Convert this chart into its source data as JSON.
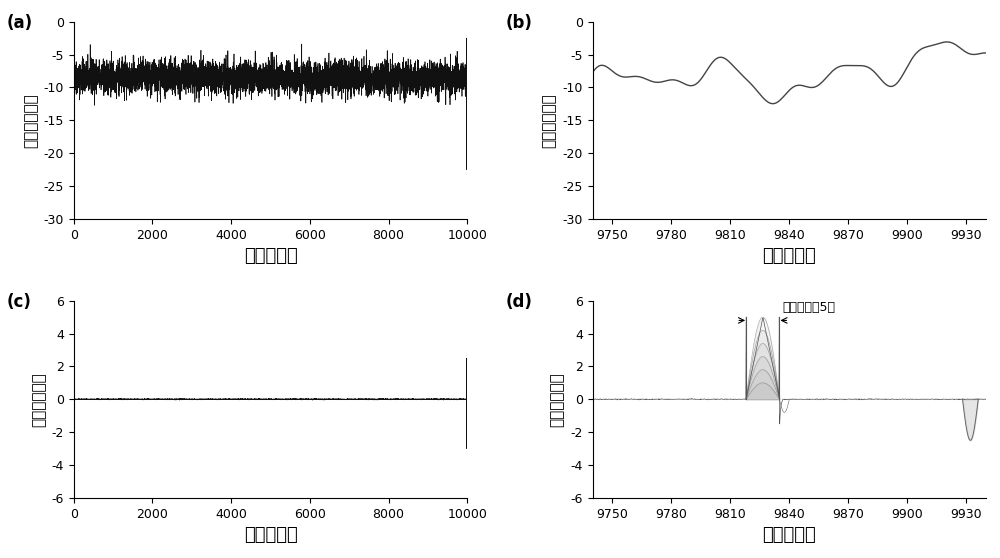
{
  "fig_width": 10.0,
  "fig_height": 5.58,
  "background_color": "#ffffff",
  "panels": {
    "a": {
      "label": "(a)",
      "xlabel": "距离（米）",
      "ylabel": "强度（分贝）",
      "xlim": [
        0,
        10000
      ],
      "ylim": [
        -30,
        0
      ],
      "xticks": [
        0,
        2000,
        4000,
        6000,
        8000,
        10000
      ],
      "yticks": [
        0,
        -5,
        -10,
        -15,
        -20,
        -25,
        -30
      ],
      "color": "#111111",
      "linewidth": 0.5
    },
    "b": {
      "label": "(b)",
      "xlabel": "距离（米）",
      "ylabel": "强度（分贝）",
      "xlim": [
        9740,
        9940
      ],
      "ylim": [
        -30,
        0
      ],
      "xticks": [
        9750,
        9780,
        9810,
        9840,
        9870,
        9900,
        9930
      ],
      "yticks": [
        0,
        -5,
        -10,
        -15,
        -20,
        -25,
        -30
      ],
      "color": "#444444",
      "linewidth": 1.0
    },
    "c": {
      "label": "(c)",
      "xlabel": "距离（米）",
      "ylabel": "相位（弧度）",
      "xlim": [
        0,
        10000
      ],
      "ylim": [
        -6,
        6
      ],
      "xticks": [
        0,
        2000,
        4000,
        6000,
        8000,
        10000
      ],
      "yticks": [
        -6,
        -4,
        -2,
        0,
        2,
        4,
        6
      ],
      "color": "#111111",
      "linewidth": 0.5
    },
    "d": {
      "label": "(d)",
      "xlabel": "距离（米）",
      "ylabel": "相位（弧度）",
      "xlim": [
        9740,
        9940
      ],
      "ylim": [
        -6,
        6
      ],
      "xticks": [
        9750,
        9780,
        9810,
        9840,
        9870,
        9900,
        9930
      ],
      "yticks": [
        -6,
        -4,
        -2,
        0,
        2,
        4,
        6
      ],
      "annotation": "空间分辨玄5米",
      "color": "#555555",
      "linewidth": 1.0
    }
  },
  "label_fontsize": 12,
  "tick_fontsize": 9,
  "ylabel_fontsize": 11,
  "xlabel_fontsize": 13
}
